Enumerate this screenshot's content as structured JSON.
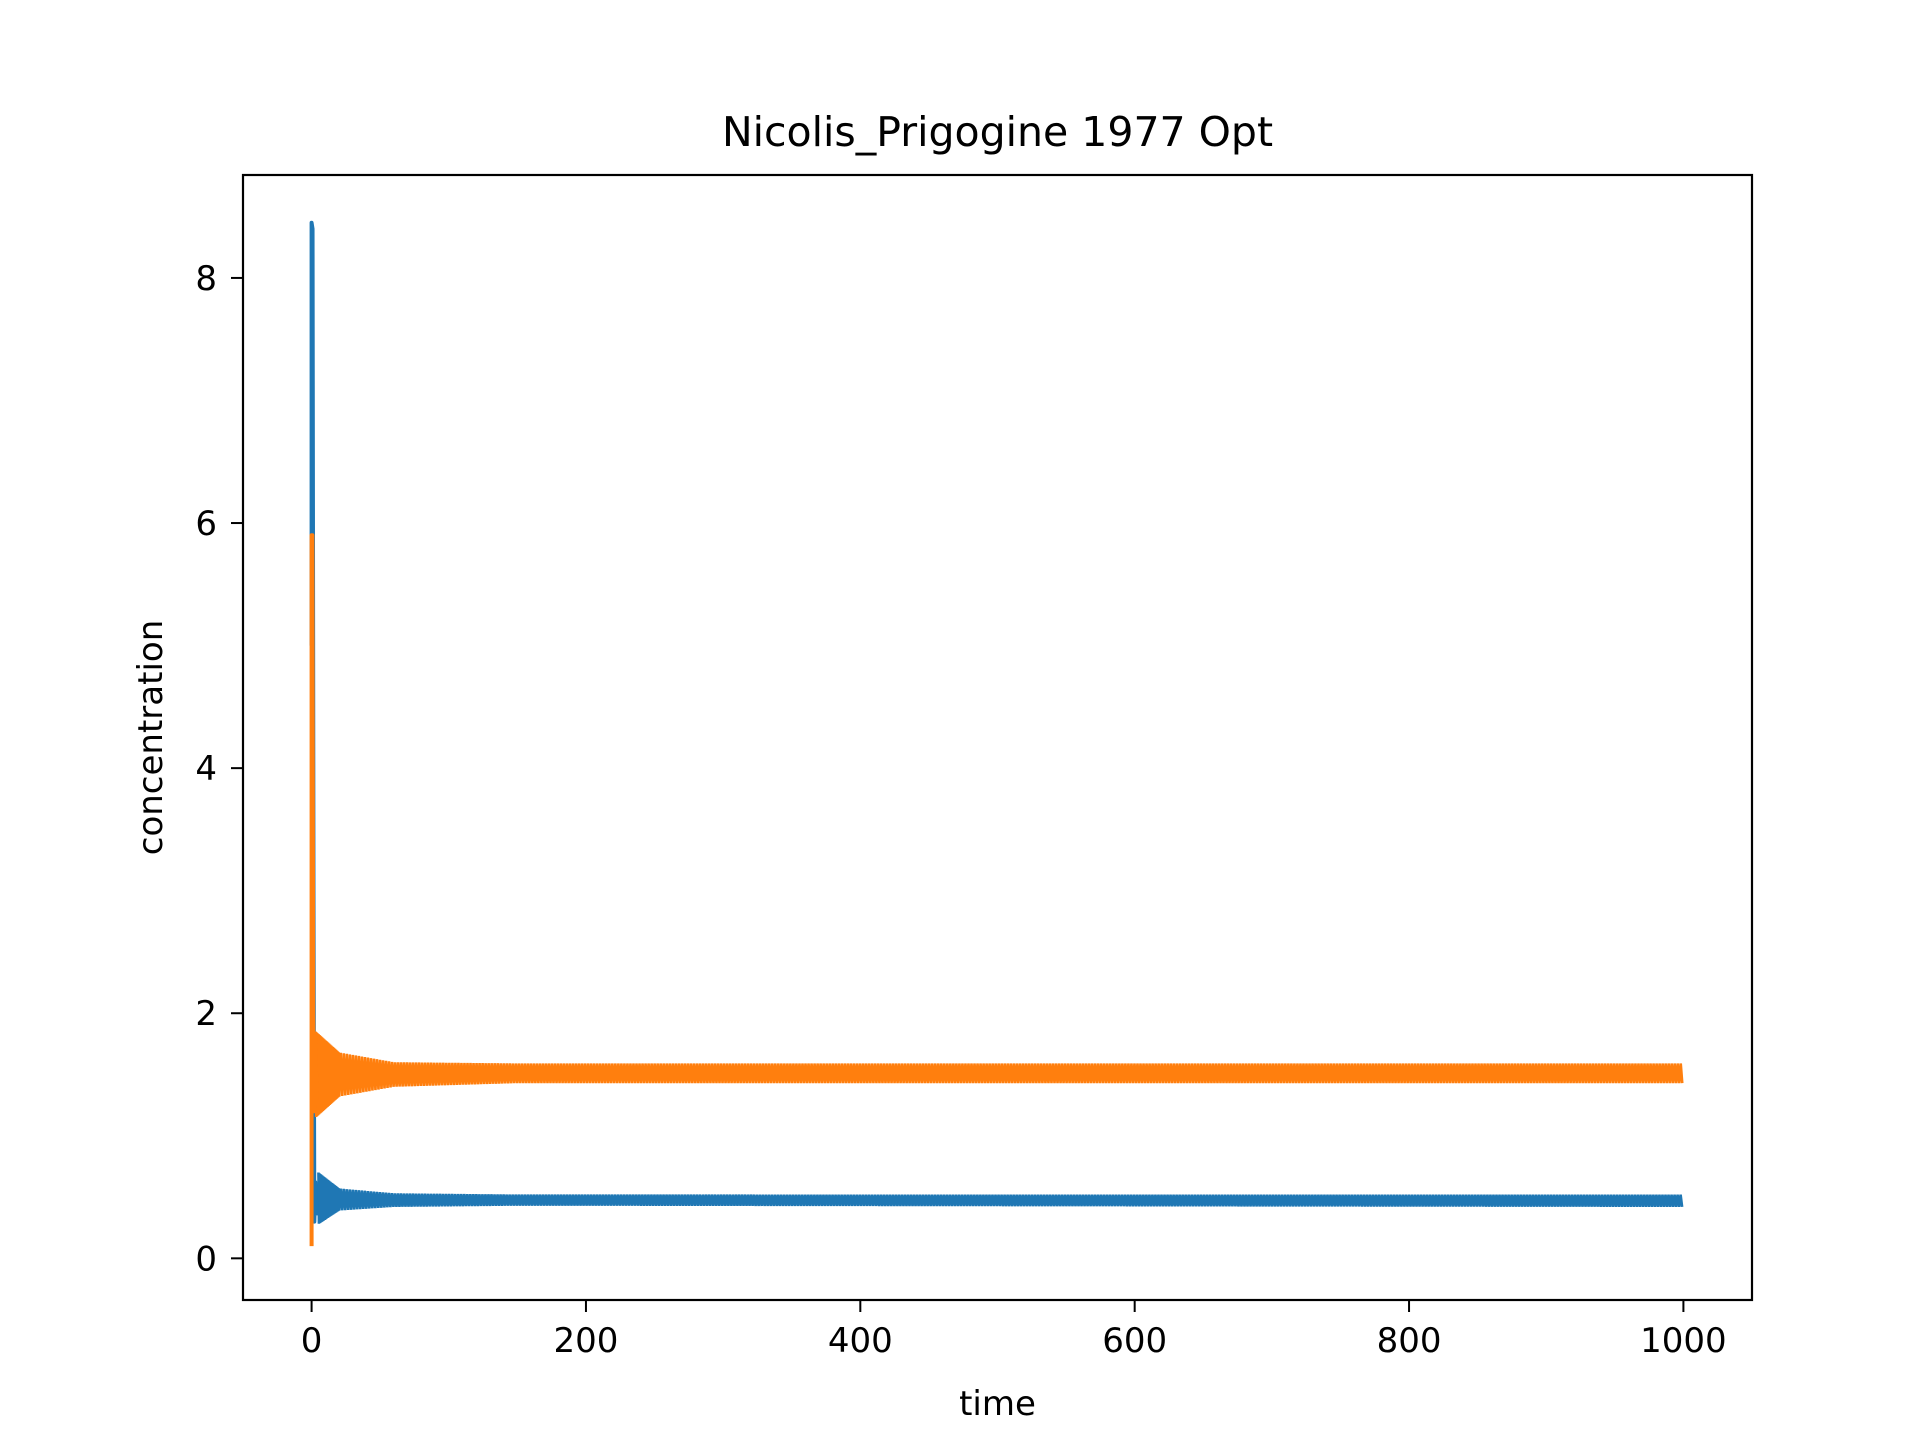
{
  "chart_data": {
    "type": "line",
    "title": "Nicolis_Prigogine 1977 Opt",
    "xlabel": "time",
    "ylabel": "concentration",
    "xlim": [
      -50,
      1050
    ],
    "ylim": [
      -0.34,
      8.84
    ],
    "xticks": [
      0,
      200,
      400,
      600,
      800,
      1000
    ],
    "yticks": [
      0,
      2,
      4,
      6,
      8
    ],
    "grid": false,
    "legend": "none",
    "series": [
      {
        "color": "#1f77b4",
        "settle": 0.47,
        "band": [
          {
            "t": 5,
            "lo": 0.28,
            "hi": 0.7
          },
          {
            "t": 20,
            "lo": 0.39,
            "hi": 0.57
          },
          {
            "t": 60,
            "lo": 0.42,
            "hi": 0.53
          },
          {
            "t": 150,
            "lo": 0.43,
            "hi": 0.52
          },
          {
            "t": 1000,
            "lo": 0.42,
            "hi": 0.52
          }
        ],
        "spike": [
          {
            "t": 0,
            "y": 5.0
          },
          {
            "t": 0,
            "y": 8.45
          },
          {
            "t": 0.7,
            "y": 8.4
          },
          {
            "t": 1.4,
            "y": 3.0
          },
          {
            "t": 2.0,
            "y": 0.3
          },
          {
            "t": 2.8,
            "y": 0.62
          },
          {
            "t": 3.6,
            "y": 0.35
          }
        ]
      },
      {
        "color": "#ff7f0e",
        "settle": 1.5,
        "band": [
          {
            "t": 3,
            "lo": 1.15,
            "hi": 1.85
          },
          {
            "t": 20,
            "lo": 1.32,
            "hi": 1.68
          },
          {
            "t": 60,
            "lo": 1.4,
            "hi": 1.6
          },
          {
            "t": 150,
            "lo": 1.43,
            "hi": 1.59
          },
          {
            "t": 1000,
            "lo": 1.43,
            "hi": 1.59
          }
        ],
        "spike": [
          {
            "t": 0,
            "y": 0.1
          },
          {
            "t": 0,
            "y": 5.9
          },
          {
            "t": 0.6,
            "y": 5.9
          },
          {
            "t": 1.2,
            "y": 2.0
          },
          {
            "t": 2.0,
            "y": 1.2
          },
          {
            "t": 2.8,
            "y": 1.8
          },
          {
            "t": 3.6,
            "y": 1.25
          }
        ]
      }
    ]
  }
}
